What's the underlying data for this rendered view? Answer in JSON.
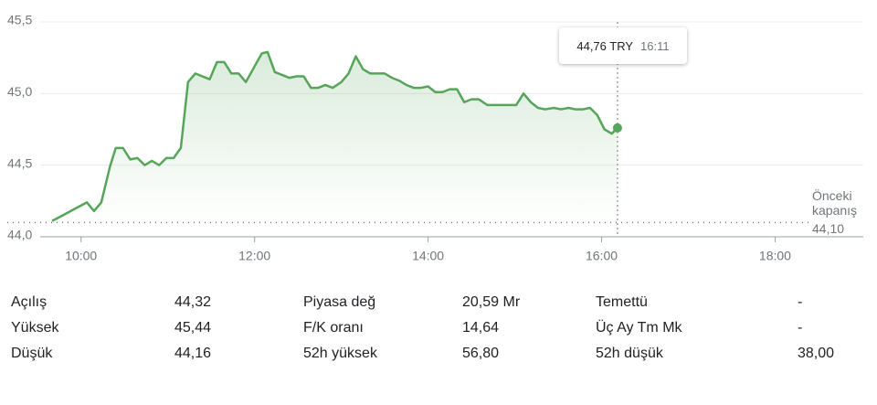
{
  "chart_data": {
    "type": "line",
    "x": [
      "09:40",
      "10:04",
      "10:09",
      "10:14",
      "10:20",
      "10:24",
      "10:29",
      "10:34",
      "10:39",
      "10:44",
      "10:49",
      "10:54",
      "10:59",
      "11:04",
      "11:09",
      "11:14",
      "11:19",
      "11:24",
      "11:29",
      "11:34",
      "11:39",
      "11:44",
      "11:49",
      "11:54",
      "12:00",
      "12:05",
      "12:09",
      "12:14",
      "12:19",
      "12:24",
      "12:29",
      "12:34",
      "12:39",
      "12:44",
      "12:49",
      "12:54",
      "13:00",
      "13:05",
      "13:10",
      "13:15",
      "13:20",
      "13:25",
      "13:30",
      "13:35",
      "13:40",
      "13:45",
      "13:50",
      "13:55",
      "14:00",
      "14:05",
      "14:10",
      "14:15",
      "14:20",
      "14:25",
      "14:30",
      "14:35",
      "14:41",
      "14:46",
      "14:51",
      "14:56",
      "15:01",
      "15:06",
      "15:11",
      "15:16",
      "15:21",
      "15:27",
      "15:32",
      "15:37",
      "15:42",
      "15:47",
      "15:52",
      "15:57",
      "16:02",
      "16:07",
      "16:11"
    ],
    "series": [
      {
        "color": "#56a55a",
        "values": [
          44.11,
          44.24,
          44.18,
          44.24,
          44.49,
          44.62,
          44.62,
          44.54,
          44.55,
          44.5,
          44.53,
          44.5,
          44.55,
          44.55,
          44.62,
          45.08,
          45.14,
          45.12,
          45.1,
          45.22,
          45.22,
          45.14,
          45.14,
          45.08,
          45.19,
          45.28,
          45.29,
          45.15,
          45.13,
          45.11,
          45.12,
          45.12,
          45.04,
          45.04,
          45.06,
          45.04,
          45.08,
          45.14,
          45.26,
          45.17,
          45.14,
          45.14,
          45.14,
          45.11,
          45.09,
          45.06,
          45.04,
          45.04,
          45.05,
          45.01,
          45.01,
          45.03,
          45.03,
          44.94,
          44.96,
          44.96,
          44.92,
          44.92,
          44.92,
          44.92,
          44.92,
          45.0,
          44.94,
          44.9,
          44.89,
          44.9,
          44.89,
          44.9,
          44.89,
          44.89,
          44.9,
          44.85,
          44.75,
          44.72,
          44.76
        ]
      }
    ],
    "xlim": [
      "09:09",
      "19:01"
    ],
    "xticks": [
      "10:00",
      "12:00",
      "14:00",
      "16:00",
      "18:00"
    ],
    "ylim": [
      44.0,
      45.5
    ],
    "yticks": [
      {
        "value": 44.0,
        "label": "44,0"
      },
      {
        "value": 44.5,
        "label": "44,5"
      },
      {
        "value": 45.0,
        "label": "45,0"
      },
      {
        "value": 45.5,
        "label": "45,5"
      }
    ],
    "grid": true,
    "reference": {
      "label": "Önceki kapanış",
      "value": 44.1,
      "value_label": "44,10"
    },
    "tooltip": {
      "price": "44,76 TRY",
      "time": "16:11"
    }
  },
  "stats": [
    {
      "label": "Açılış",
      "value": "44,32"
    },
    {
      "label": "Yüksek",
      "value": "45,44"
    },
    {
      "label": "Düşük",
      "value": "44,16"
    },
    {
      "label": "Piyasa değ",
      "value": "20,59 Mr"
    },
    {
      "label": "F/K oranı",
      "value": "14,64"
    },
    {
      "label": "52h yüksek",
      "value": "56,80"
    },
    {
      "label": "Temettü",
      "value": "-"
    },
    {
      "label": "Üç Ay Tm Mk",
      "value": "-"
    },
    {
      "label": "52h düşük",
      "value": "38,00"
    }
  ]
}
